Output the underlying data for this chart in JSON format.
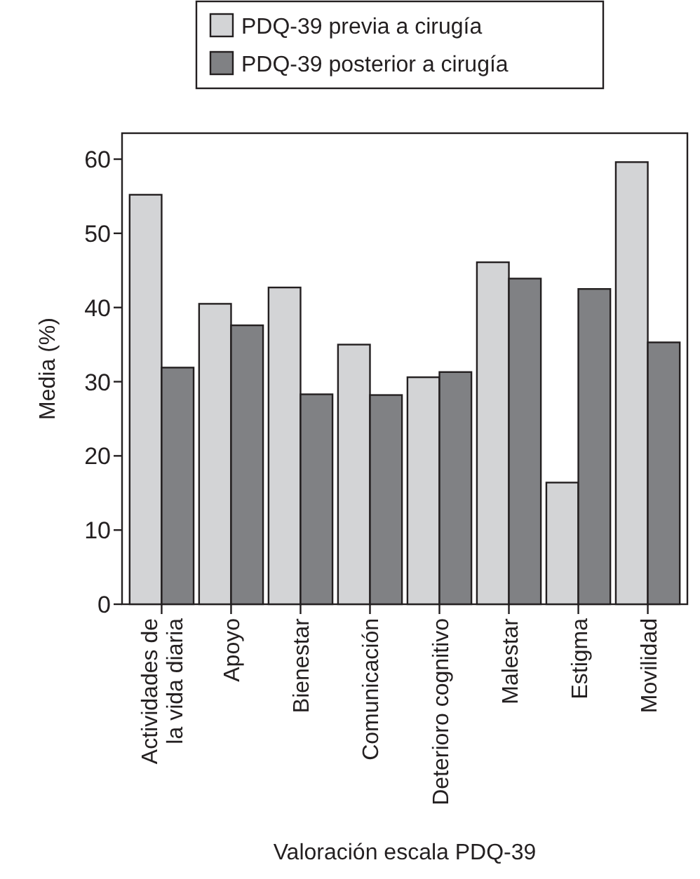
{
  "chart_data": {
    "type": "bar",
    "xlabel": "Valoración escala PDQ-39",
    "ylabel": "Media (%)",
    "categories": [
      "Actividades de la vida diaria",
      "Apoyo",
      "Bienestar",
      "Comunicación",
      "Deterioro cognitivo",
      "Malestar",
      "Estigma",
      "Movilidad"
    ],
    "series": [
      {
        "name": "PDQ-39 previa a cirugía",
        "color": "#d3d4d6",
        "values": [
          55.2,
          40.5,
          42.7,
          35.0,
          30.6,
          46.1,
          16.4,
          59.6
        ]
      },
      {
        "name": "PDQ-39 posterior a cirugía",
        "color": "#808184",
        "values": [
          31.9,
          37.6,
          28.3,
          28.2,
          31.3,
          43.9,
          42.5,
          35.3
        ]
      }
    ],
    "ylim": [
      0,
      63.5
    ],
    "yticks": [
      0,
      10,
      20,
      30,
      40,
      50,
      60
    ],
    "legend": "top"
  }
}
